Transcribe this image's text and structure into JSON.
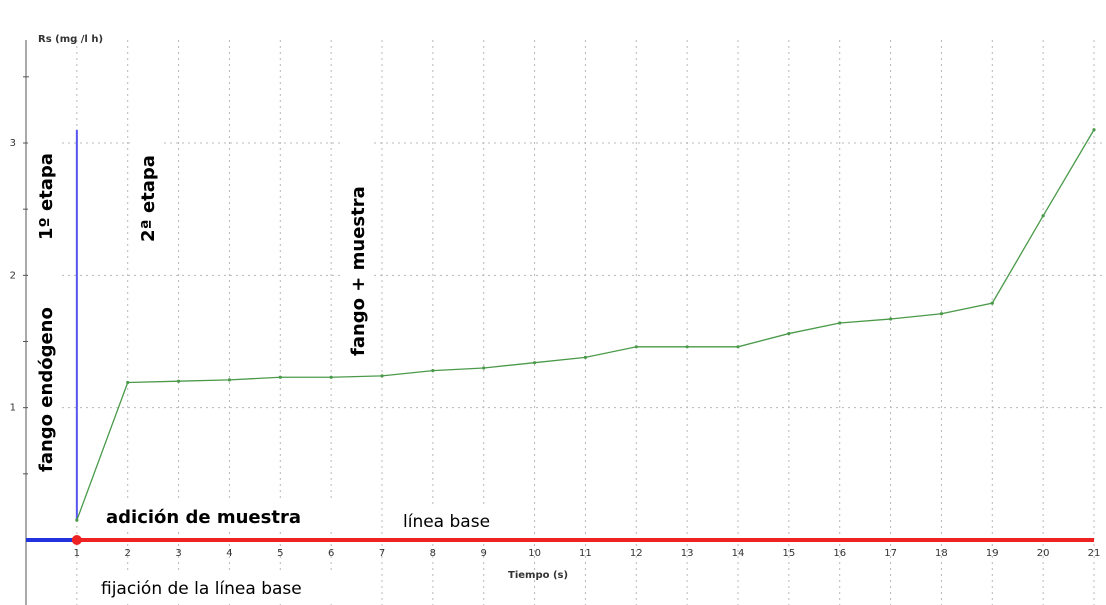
{
  "chart_data": {
    "type": "line",
    "ylabel": "Rs (mg /l h)",
    "xlabel": "Tiempo (s)",
    "xlim": [
      0,
      21
    ],
    "ylim": [
      0,
      3
    ],
    "x_ticks": [
      "1",
      "2",
      "3",
      "4",
      "5",
      "6",
      "7",
      "8",
      "9",
      "10",
      "11",
      "12",
      "13",
      "14",
      "15",
      "16",
      "17",
      "18",
      "19",
      "20",
      "21"
    ],
    "y_ticks": [
      "1",
      "2",
      "3"
    ],
    "grid": true,
    "series": [
      {
        "color": "#4a9a4a",
        "x": [
          1,
          2,
          3,
          4,
          5,
          6,
          7,
          8,
          9,
          10,
          11,
          12,
          13,
          14,
          15,
          16,
          17,
          18,
          19,
          20,
          21
        ],
        "y": [
          0.15,
          1.19,
          1.2,
          1.21,
          1.23,
          1.23,
          1.24,
          1.28,
          1.3,
          1.34,
          1.38,
          1.46,
          1.46,
          1.46,
          1.56,
          1.64,
          1.67,
          1.71,
          1.79,
          2.45,
          3.1
        ]
      }
    ],
    "baseline": {
      "blue_segment": {
        "x": [
          0,
          1
        ],
        "y": 0,
        "color": "#2233dd"
      },
      "red_segment": {
        "x": [
          1,
          21
        ],
        "y": 0,
        "color": "#ee2222"
      }
    },
    "vertical_marker": {
      "x": 1,
      "y": [
        0.15,
        3.1
      ],
      "color": "#5555ee"
    },
    "point_marker": {
      "x": 1,
      "y": 0,
      "color": "#ee2222"
    },
    "annotations": [
      "1º etapa",
      "fango endógeno",
      "2ª etapa",
      "fango + muestra",
      "adición de muestra",
      "línea base",
      "fijación de la línea base"
    ],
    "colors": {
      "grid": "#b8b8b8",
      "axis": "#555555",
      "line": "#4a9a4a",
      "baseline_red": "#ee2222",
      "baseline_blue": "#2233dd",
      "marker_blue": "#5555ee"
    }
  }
}
